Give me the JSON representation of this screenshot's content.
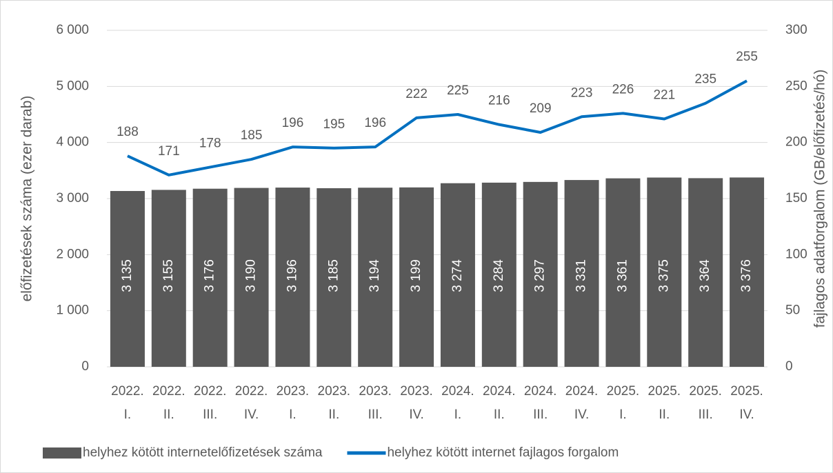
{
  "chart_data": {
    "type": "bar",
    "categories": [
      "2022. I.",
      "2022. II.",
      "2022. III.",
      "2022. IV.",
      "2023. I.",
      "2023. II.",
      "2023. III.",
      "2023. IV.",
      "2024. I.",
      "2024. II.",
      "2024. III.",
      "2024. IV.",
      "2025. I.",
      "2025. II.",
      "2025. III.",
      "2025. IV."
    ],
    "ylabel": "előfizetések száma (ezer darab)",
    "y2label": "fajlagos adatforgalom (GB/előfizetés/hó)",
    "ylim": [
      0,
      6000
    ],
    "yticks": [
      0,
      {
        "value": 1000,
        "label": "1 000"
      },
      {
        "value": 2000,
        "label": "2 000"
      },
      {
        "value": 3000,
        "label": "3 000"
      },
      {
        "value": 4000,
        "label": "4 000"
      },
      {
        "value": 5000,
        "label": "5 000"
      },
      {
        "value": 6000,
        "label": "6 000"
      }
    ],
    "y2lim": [
      0,
      300
    ],
    "y2ticks": [
      0,
      50,
      100,
      150,
      200,
      250,
      300
    ],
    "grid": true,
    "legend": "bottom",
    "series": [
      {
        "name": "helyhez kötött internetelőfizetések száma",
        "type": "bar",
        "color": "#595959",
        "values": [
          3135,
          3155,
          3176,
          3190,
          3196,
          3185,
          3194,
          3199,
          3274,
          3284,
          3297,
          3331,
          3361,
          3375,
          3364,
          3376
        ],
        "value_labels": [
          "3 135",
          "3 155",
          "3 176",
          "3 190",
          "3 196",
          "3 185",
          "3 194",
          "3 199",
          "3 274",
          "3 284",
          "3 297",
          "3 331",
          "3 361",
          "3 375",
          "3 364",
          "3 376"
        ]
      },
      {
        "name": "helyhez kötött internet fajlagos forgalom",
        "type": "line",
        "axis": "y2",
        "color": "#0070c0",
        "values": [
          188,
          171,
          178,
          185,
          196,
          195,
          196,
          222,
          225,
          216,
          209,
          223,
          226,
          221,
          235,
          255
        ]
      }
    ]
  }
}
